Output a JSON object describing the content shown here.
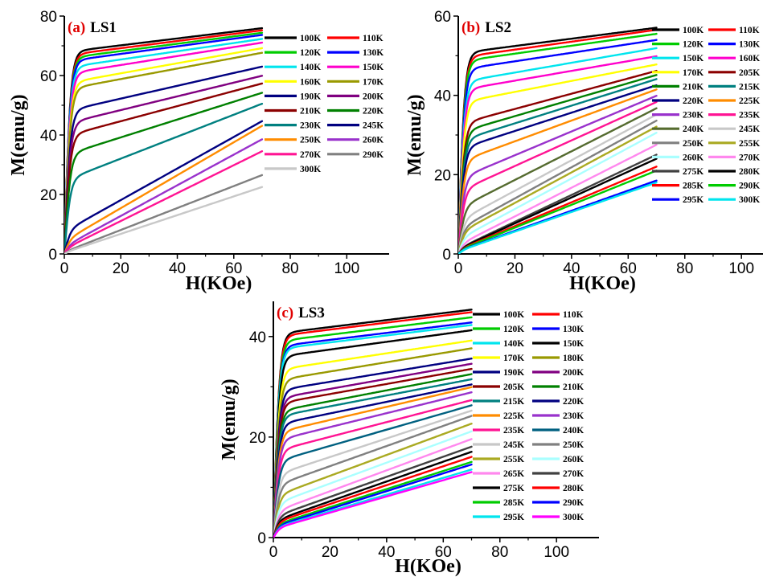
{
  "chart_data": [
    {
      "panel_letter": "(a)",
      "panel_name": "LS1",
      "type": "line",
      "xlabel": "H(KOe)",
      "ylabel": "M(emu/g)",
      "xlim": [
        0,
        115
      ],
      "ylim": [
        0,
        80
      ],
      "xticks": [
        "0",
        "20",
        "40",
        "60",
        "80",
        "100"
      ],
      "yticks": [
        "0",
        "20",
        "40",
        "60",
        "80"
      ],
      "x_max": 70,
      "legend_placement": "right, inside plot",
      "grid": false,
      "series": [
        {
          "name": "100K",
          "color": "#000000",
          "m70": 74.5,
          "m5": 67
        },
        {
          "name": "110K",
          "color": "#ff0000",
          "m70": 73.8,
          "m5": 66
        },
        {
          "name": "120K",
          "color": "#00cc00",
          "m70": 73.0,
          "m5": 65
        },
        {
          "name": "130K",
          "color": "#0000ff",
          "m70": 72.3,
          "m5": 64
        },
        {
          "name": "140K",
          "color": "#00e5ee",
          "m70": 71.0,
          "m5": 62
        },
        {
          "name": "150K",
          "color": "#ff00cc",
          "m70": 69.8,
          "m5": 60
        },
        {
          "name": "160K",
          "color": "#ffff00",
          "m70": 68.0,
          "m5": 57
        },
        {
          "name": "170K",
          "color": "#999900",
          "m70": 66.5,
          "m5": 55
        },
        {
          "name": "190K",
          "color": "#000080",
          "m70": 62.0,
          "m5": 48
        },
        {
          "name": "200K",
          "color": "#800080",
          "m70": 59.0,
          "m5": 44
        },
        {
          "name": "210K",
          "color": "#8b0000",
          "m70": 56.5,
          "m5": 40
        },
        {
          "name": "220K",
          "color": "#008000",
          "m70": 53.5,
          "m5": 34
        },
        {
          "name": "230K",
          "color": "#008080",
          "m70": 50.0,
          "m5": 26
        },
        {
          "name": "245K",
          "color": "#000080",
          "m70": 44.5,
          "m5": 10
        },
        {
          "name": "250K",
          "color": "#ff8c00",
          "m70": 43.0,
          "m5": 7
        },
        {
          "name": "260K",
          "color": "#9932cc",
          "m70": 38.5,
          "m5": 5
        },
        {
          "name": "270K",
          "color": "#ff1493",
          "m70": 34.5,
          "m5": 4
        },
        {
          "name": "290K",
          "color": "#808080",
          "m70": 26.5,
          "m5": 2.5
        },
        {
          "name": "300K",
          "color": "#c8c8c8",
          "m70": 22.5,
          "m5": 2
        }
      ]
    },
    {
      "panel_letter": "(b)",
      "panel_name": "LS2",
      "type": "line",
      "xlabel": "H(KOe)",
      "ylabel": "M(emu/g)",
      "xlim": [
        0,
        115
      ],
      "ylim": [
        0,
        60
      ],
      "xticks": [
        "0",
        "20",
        "40",
        "60",
        "80",
        "100"
      ],
      "yticks": [
        "0",
        "20",
        "40",
        "60"
      ],
      "x_max": 70,
      "legend_placement": "right, inside plot",
      "grid": false,
      "series": [
        {
          "name": "100K",
          "color": "#000000",
          "m70": 56.0,
          "m5": 50
        },
        {
          "name": "110K",
          "color": "#ff0000",
          "m70": 55.5,
          "m5": 49
        },
        {
          "name": "120K",
          "color": "#00cc00",
          "m70": 54.5,
          "m5": 48
        },
        {
          "name": "130K",
          "color": "#0000ff",
          "m70": 53.0,
          "m5": 46
        },
        {
          "name": "150K",
          "color": "#00e5ee",
          "m70": 51.0,
          "m5": 43
        },
        {
          "name": "160K",
          "color": "#ff00cc",
          "m70": 49.0,
          "m5": 41
        },
        {
          "name": "170K",
          "color": "#ffff00",
          "m70": 47.0,
          "m5": 38
        },
        {
          "name": "205K",
          "color": "#8b0000",
          "m70": 45.5,
          "m5": 33
        },
        {
          "name": "210K",
          "color": "#008000",
          "m70": 44.5,
          "m5": 31
        },
        {
          "name": "215K",
          "color": "#008080",
          "m70": 43.5,
          "m5": 29
        },
        {
          "name": "220K",
          "color": "#000080",
          "m70": 42.0,
          "m5": 27
        },
        {
          "name": "225K",
          "color": "#ff8c00",
          "m70": 41.0,
          "m5": 24
        },
        {
          "name": "230K",
          "color": "#9932cc",
          "m70": 39.5,
          "m5": 20
        },
        {
          "name": "235K",
          "color": "#ff1493",
          "m70": 38.0,
          "m5": 17
        },
        {
          "name": "240K",
          "color": "#556b2f",
          "m70": 36.5,
          "m5": 13
        },
        {
          "name": "245K",
          "color": "#c8c8c8",
          "m70": 35.0,
          "m5": 10
        },
        {
          "name": "250K",
          "color": "#808080",
          "m70": 33.5,
          "m5": 8
        },
        {
          "name": "255K",
          "color": "#aaaa22",
          "m70": 32.0,
          "m5": 7
        },
        {
          "name": "260K",
          "color": "#aaffff",
          "m70": 30.5,
          "m5": 5.5
        },
        {
          "name": "270K",
          "color": "#ff88ee",
          "m70": 27.5,
          "m5": 4
        },
        {
          "name": "275K",
          "color": "#404040",
          "m70": 25.0,
          "m5": 3
        },
        {
          "name": "280K",
          "color": "#000000",
          "m70": 24.0,
          "m5": 2.8
        },
        {
          "name": "285K",
          "color": "#ff0000",
          "m70": 22.0,
          "m5": 2.5
        },
        {
          "name": "290K",
          "color": "#00cc00",
          "m70": 21.0,
          "m5": 2.3
        },
        {
          "name": "295K",
          "color": "#0000ff",
          "m70": 18.5,
          "m5": 2
        },
        {
          "name": "300K",
          "color": "#00e5ee",
          "m70": 18.0,
          "m5": 1.9
        }
      ]
    },
    {
      "panel_letter": "(c)",
      "panel_name": "LS3",
      "type": "line",
      "xlabel": "H(KOe)",
      "ylabel": "M(emu/g)",
      "xlim": [
        0,
        115
      ],
      "ylim": [
        0,
        47
      ],
      "xticks": [
        "0",
        "20",
        "40",
        "60",
        "80",
        "100"
      ],
      "yticks": [
        "0",
        "20",
        "40"
      ],
      "x_max": 70,
      "legend_placement": "right, inside plot",
      "grid": false,
      "series": [
        {
          "name": "100K",
          "color": "#000000",
          "m70": 44.5,
          "m5": 40
        },
        {
          "name": "110K",
          "color": "#ff0000",
          "m70": 44.0,
          "m5": 39.5
        },
        {
          "name": "120K",
          "color": "#00cc00",
          "m70": 43.0,
          "m5": 38.5
        },
        {
          "name": "130K",
          "color": "#0000ff",
          "m70": 42.0,
          "m5": 37.5
        },
        {
          "name": "140K",
          "color": "#00e5ee",
          "m70": 41.5,
          "m5": 37
        },
        {
          "name": "150K",
          "color": "#000000",
          "m70": 40.5,
          "m5": 35.5
        },
        {
          "name": "170K",
          "color": "#ffff00",
          "m70": 38.5,
          "m5": 33
        },
        {
          "name": "180K",
          "color": "#999900",
          "m70": 37.0,
          "m5": 31
        },
        {
          "name": "190K",
          "color": "#000080",
          "m70": 35.0,
          "m5": 29
        },
        {
          "name": "200K",
          "color": "#800080",
          "m70": 34.0,
          "m5": 27.5
        },
        {
          "name": "205K",
          "color": "#8b0000",
          "m70": 33.0,
          "m5": 26.5
        },
        {
          "name": "210K",
          "color": "#008000",
          "m70": 32.0,
          "m5": 25
        },
        {
          "name": "215K",
          "color": "#008080",
          "m70": 31.0,
          "m5": 24
        },
        {
          "name": "220K",
          "color": "#000080",
          "m70": 30.0,
          "m5": 22.5
        },
        {
          "name": "225K",
          "color": "#ff8c00",
          "m70": 29.5,
          "m5": 21
        },
        {
          "name": "230K",
          "color": "#9932cc",
          "m70": 28.5,
          "m5": 19.5
        },
        {
          "name": "235K",
          "color": "#ff1493",
          "m70": 27.0,
          "m5": 17.5
        },
        {
          "name": "240K",
          "color": "#006080",
          "m70": 26.0,
          "m5": 15.5
        },
        {
          "name": "245K",
          "color": "#c8c8c8",
          "m70": 25.0,
          "m5": 13
        },
        {
          "name": "250K",
          "color": "#808080",
          "m70": 24.0,
          "m5": 11
        },
        {
          "name": "255K",
          "color": "#aaaa22",
          "m70": 22.5,
          "m5": 9
        },
        {
          "name": "260K",
          "color": "#aaffff",
          "m70": 21.0,
          "m5": 7.5
        },
        {
          "name": "265K",
          "color": "#ff88ee",
          "m70": 19.5,
          "m5": 6
        },
        {
          "name": "270K",
          "color": "#404040",
          "m70": 18.0,
          "m5": 5
        },
        {
          "name": "275K",
          "color": "#000000",
          "m70": 17.0,
          "m5": 4.2
        },
        {
          "name": "280K",
          "color": "#ff0000",
          "m70": 16.0,
          "m5": 3.8
        },
        {
          "name": "285K",
          "color": "#00cc00",
          "m70": 15.0,
          "m5": 3.3
        },
        {
          "name": "290K",
          "color": "#0000ff",
          "m70": 14.5,
          "m5": 3
        },
        {
          "name": "295K",
          "color": "#00e5ee",
          "m70": 13.5,
          "m5": 2.7
        },
        {
          "name": "300K",
          "color": "#ff00ff",
          "m70": 13.0,
          "m5": 2.5
        }
      ]
    }
  ]
}
